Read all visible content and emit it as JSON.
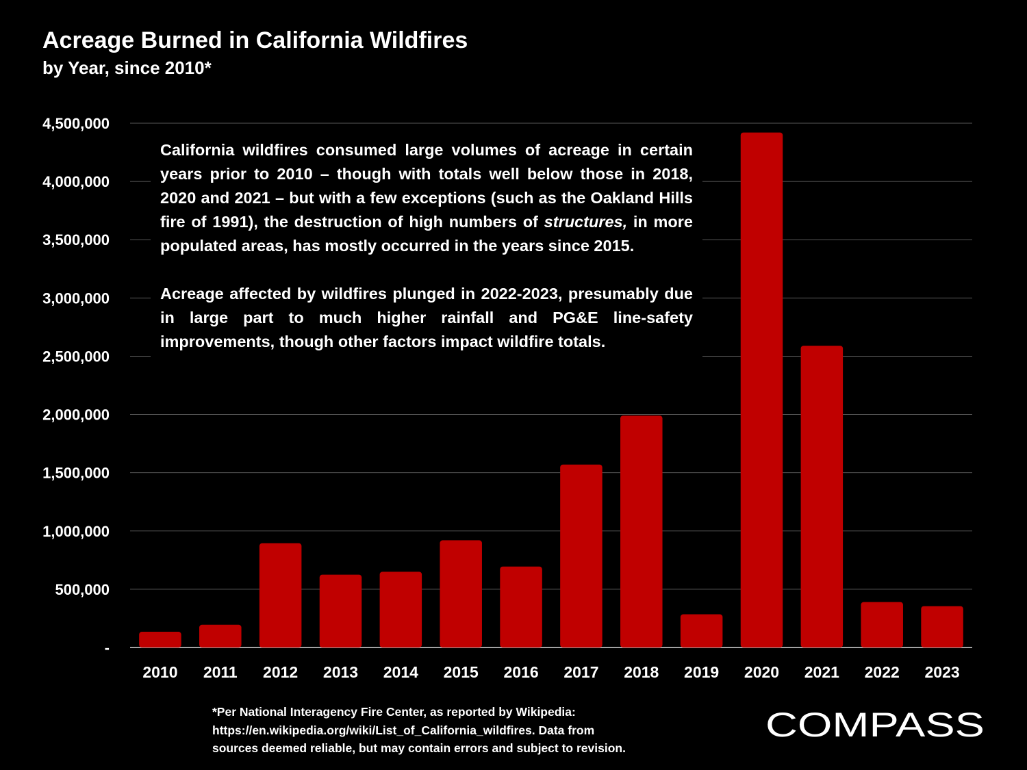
{
  "header": {
    "title": "Acreage Burned in California Wildfires",
    "subtitle": "by Year, since 2010*"
  },
  "annotation": {
    "paragraph1_before": "California wildfires consumed large volumes of acreage in certain years prior to 2010 – though with totals well below those in 2018, 2020 and 2021 – but with a few exceptions (such as the Oakland Hills fire of 1991), the destruction of high numbers of ",
    "paragraph1_emphasis": "structures,",
    "paragraph1_after": " in more populated areas, has mostly occurred in the years since 2015.",
    "paragraph2": "Acreage affected by wildfires plunged in 2022-2023, presumably due in large part to much higher rainfall and PG&E line-safety improvements, though other factors impact wildfire totals."
  },
  "footnote": {
    "line1": "*Per National Interagency Fire Center, as reported by Wikipedia:",
    "line2": "https://en.wikipedia.org/wiki/List_of_California_wildfires. Data from",
    "line3": "sources deemed reliable, but may contain errors and subject to revision."
  },
  "logo": {
    "text": "COMPASS"
  },
  "colors": {
    "background": "#000000",
    "bar": "#c00000",
    "gridline": "#595959",
    "text": "#ffffff"
  },
  "chart_data": {
    "type": "bar",
    "title": "Acreage Burned in California Wildfires",
    "subtitle": "by Year, since 2010*",
    "xlabel": "",
    "ylabel": "",
    "categories": [
      "2010",
      "2011",
      "2012",
      "2013",
      "2014",
      "2015",
      "2016",
      "2017",
      "2018",
      "2019",
      "2020",
      "2021",
      "2022",
      "2023"
    ],
    "values": [
      135000,
      195000,
      895000,
      625000,
      650000,
      920000,
      695000,
      1570000,
      1990000,
      285000,
      4420000,
      2590000,
      390000,
      355000
    ],
    "ylim": [
      0,
      4500000
    ],
    "yticks": [
      0,
      500000,
      1000000,
      1500000,
      2000000,
      2500000,
      3000000,
      3500000,
      4000000,
      4500000
    ],
    "ytick_labels": [
      "-",
      "500,000",
      "1,000,000",
      "1,500,000",
      "2,000,000",
      "2,500,000",
      "3,000,000",
      "3,500,000",
      "4,000,000",
      "4,500,000"
    ],
    "grid": true,
    "legend": "none"
  }
}
